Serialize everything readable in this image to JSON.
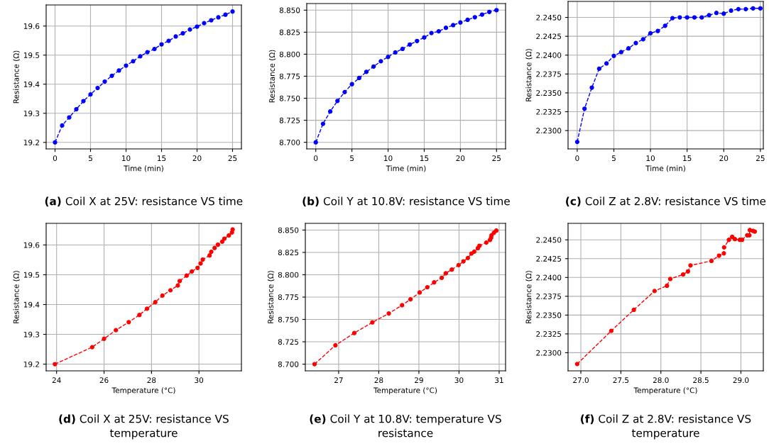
{
  "chart_data": [
    {
      "type": "line",
      "title": "(a) Coil X at 25V: resistance VS time",
      "xlabel": "Time (min)",
      "ylabel": "Resistance (Ω)",
      "grid": true,
      "marker": "circle",
      "line_style": "dashed",
      "x": [
        0,
        1,
        2,
        3,
        4,
        5,
        6,
        7,
        8,
        9,
        10,
        11,
        12,
        13,
        14,
        15,
        16,
        17,
        18,
        19,
        20,
        21,
        22,
        23,
        24,
        25
      ],
      "series": [
        {
          "color": "#0000ff",
          "values": [
            19.2,
            19.258,
            19.286,
            19.314,
            19.342,
            19.365,
            19.387,
            19.409,
            19.429,
            19.447,
            19.464,
            19.479,
            19.496,
            19.51,
            19.521,
            19.537,
            19.549,
            19.564,
            19.575,
            19.588,
            19.598,
            19.61,
            19.62,
            19.63,
            19.639,
            19.65
          ]
        }
      ],
      "xlim": [
        -1.25,
        26.25
      ],
      "ylim": [
        19.1775,
        19.6725
      ],
      "xticks": [
        0,
        5,
        10,
        15,
        20,
        25
      ],
      "yticks": [
        19.2,
        19.3,
        19.4,
        19.5,
        19.6
      ]
    },
    {
      "type": "line",
      "title": "(b) Coil Y at 10.8V: resistance VS time",
      "xlabel": "Time (min)",
      "ylabel": "Resistance (Ω)",
      "grid": true,
      "marker": "circle",
      "line_style": "dashed",
      "x": [
        0,
        1,
        2,
        3,
        4,
        5,
        6,
        7,
        8,
        9,
        10,
        11,
        12,
        13,
        14,
        15,
        16,
        17,
        18,
        19,
        20,
        21,
        22,
        23,
        24,
        25
      ],
      "series": [
        {
          "color": "#0000ff",
          "values": [
            8.7,
            8.721,
            8.735,
            8.747,
            8.757,
            8.766,
            8.773,
            8.78,
            8.786,
            8.792,
            8.797,
            8.802,
            8.806,
            8.811,
            8.815,
            8.819,
            8.824,
            8.826,
            8.83,
            8.833,
            8.836,
            8.839,
            8.842,
            8.845,
            8.848,
            8.85
          ]
        }
      ],
      "xlim": [
        -1.25,
        26.25
      ],
      "ylim": [
        8.6925,
        8.8575
      ],
      "xticks": [
        0,
        5,
        10,
        15,
        20,
        25
      ],
      "yticks": [
        {
          "value": 8.7,
          "label": "8.700"
        },
        {
          "value": 8.725,
          "label": "8.725"
        },
        {
          "value": 8.75,
          "label": "8.750"
        },
        {
          "value": 8.775,
          "label": "8.775"
        },
        {
          "value": 8.8,
          "label": "8.800"
        },
        {
          "value": 8.825,
          "label": "8.825"
        },
        {
          "value": 8.85,
          "label": "8.850"
        }
      ]
    },
    {
      "type": "line",
      "title": "(c) Coil Z at 2.8V: resistance VS time",
      "xlabel": "Time (min)",
      "ylabel": "Resistance (Ω)",
      "grid": true,
      "marker": "circle",
      "line_style": "dashed",
      "x": [
        0,
        1,
        2,
        3,
        4,
        5,
        6,
        7,
        8,
        9,
        10,
        11,
        12,
        13,
        14,
        15,
        16,
        17,
        18,
        19,
        20,
        21,
        22,
        23,
        24,
        25
      ],
      "series": [
        {
          "color": "#0000ff",
          "values": [
            2.2285,
            2.2329,
            2.2357,
            2.2382,
            2.2389,
            2.2399,
            2.2404,
            2.2409,
            2.2416,
            2.2421,
            2.2429,
            2.2432,
            2.2439,
            2.2449,
            2.245,
            2.245,
            2.245,
            2.245,
            2.2453,
            2.2456,
            2.2455,
            2.2459,
            2.2461,
            2.2461,
            2.2462,
            2.2462
          ]
        }
      ],
      "xlim": [
        -1.25,
        25.4
      ],
      "ylim": [
        2.22757,
        2.24712
      ],
      "xticks": [
        0,
        5,
        10,
        15,
        20,
        25
      ],
      "yticks": [
        {
          "value": 2.23,
          "label": "2.2300"
        },
        {
          "value": 2.2325,
          "label": "2.2325"
        },
        {
          "value": 2.235,
          "label": "2.2350"
        },
        {
          "value": 2.2375,
          "label": "2.2375"
        },
        {
          "value": 2.24,
          "label": "2.2400"
        },
        {
          "value": 2.2425,
          "label": "2.2425"
        },
        {
          "value": 2.245,
          "label": "2.2450"
        }
      ]
    },
    {
      "type": "line",
      "title": "(d) Coil X at 25V: resistance VS temperature",
      "xlabel": "Temperature (°C)",
      "ylabel": "Resistance (Ω)",
      "grid": true,
      "marker": "circle",
      "line_style": "dashed",
      "x": [
        23.93,
        25.5,
        26.0,
        26.5,
        27.04,
        27.49,
        27.81,
        28.16,
        28.46,
        28.8,
        29.11,
        29.19,
        29.48,
        29.7,
        29.94,
        30.07,
        30.16,
        30.45,
        30.52,
        30.66,
        30.8,
        30.98,
        31.07,
        31.26,
        31.39,
        31.42
      ],
      "series": [
        {
          "color": "#ff0000",
          "values": [
            19.2,
            19.257,
            19.285,
            19.314,
            19.341,
            19.365,
            19.386,
            19.408,
            19.43,
            19.448,
            19.464,
            19.479,
            19.497,
            19.511,
            19.523,
            19.538,
            19.551,
            19.565,
            19.577,
            19.59,
            19.601,
            19.611,
            19.621,
            19.632,
            19.642,
            19.652
          ]
        }
      ],
      "xlim": [
        23.56,
        31.79
      ],
      "ylim": [
        19.1775,
        19.6725
      ],
      "xticks": [
        24,
        26,
        28,
        30
      ],
      "yticks": [
        19.2,
        19.3,
        19.4,
        19.5,
        19.6
      ]
    },
    {
      "type": "line",
      "title": "(e) Coil Y at 10.8V: temperature VS resistance",
      "xlabel": "Temperature (°C)",
      "ylabel": "Resistance (Ω)",
      "grid": true,
      "marker": "circle",
      "line_style": "dashed",
      "x": [
        26.4,
        26.92,
        27.39,
        27.84,
        28.25,
        28.58,
        28.79,
        29.02,
        29.21,
        29.38,
        29.57,
        29.67,
        29.82,
        29.99,
        30.11,
        30.22,
        30.31,
        30.38,
        30.47,
        30.51,
        30.68,
        30.77,
        30.8,
        30.81,
        30.87,
        30.93
      ],
      "series": [
        {
          "color": "#ff0000",
          "values": [
            8.7,
            8.7211,
            8.7348,
            8.7467,
            8.7567,
            8.7659,
            8.7725,
            8.7802,
            8.786,
            8.7915,
            8.7966,
            8.8016,
            8.8058,
            8.8108,
            8.815,
            8.8187,
            8.8237,
            8.8259,
            8.8298,
            8.8325,
            8.836,
            8.8389,
            8.8415,
            8.8441,
            8.847,
            8.8494
          ]
        }
      ],
      "xlim": [
        26.17,
        31.16
      ],
      "ylim": [
        8.6925,
        8.8575
      ],
      "xticks": [
        27,
        28,
        29,
        30,
        31
      ],
      "yticks": [
        {
          "value": 8.7,
          "label": "8.700"
        },
        {
          "value": 8.725,
          "label": "8.725"
        },
        {
          "value": 8.75,
          "label": "8.750"
        },
        {
          "value": 8.775,
          "label": "8.775"
        },
        {
          "value": 8.8,
          "label": "8.800"
        },
        {
          "value": 8.825,
          "label": "8.825"
        },
        {
          "value": 8.85,
          "label": "8.850"
        }
      ]
    },
    {
      "type": "line",
      "title": "(f) Coil Z at 2.8V: resistance VS temperature",
      "xlabel": "Temperature (°C)",
      "ylabel": "Resistance (Ω)",
      "grid": true,
      "marker": "circle",
      "line_style": "dashed",
      "x": [
        26.954,
        27.38,
        27.662,
        27.921,
        28.076,
        28.117,
        28.278,
        28.338,
        28.37,
        28.632,
        28.727,
        28.787,
        28.79,
        28.85,
        28.891,
        28.925,
        28.986,
        29.014,
        29.078,
        29.106,
        29.112,
        29.15,
        29.173
      ],
      "series": [
        {
          "color": "#ff0000",
          "values": [
            2.2285,
            2.2329,
            2.2357,
            2.2382,
            2.2389,
            2.2398,
            2.2404,
            2.2408,
            2.2416,
            2.2422,
            2.2429,
            2.2432,
            2.244,
            2.245,
            2.2454,
            2.2451,
            2.245,
            2.245,
            2.2456,
            2.2456,
            2.2463,
            2.2462,
            2.2461
          ]
        }
      ],
      "xlim": [
        26.84,
        29.28
      ],
      "ylim": [
        2.22759,
        2.24719
      ],
      "xticks": [
        {
          "value": 27.0,
          "label": "27.0"
        },
        {
          "value": 27.5,
          "label": "27.5"
        },
        {
          "value": 28.0,
          "label": "28.0"
        },
        {
          "value": 28.5,
          "label": "28.5"
        },
        {
          "value": 29.0,
          "label": "29.0"
        }
      ],
      "yticks": [
        {
          "value": 2.23,
          "label": "2.2300"
        },
        {
          "value": 2.2325,
          "label": "2.2325"
        },
        {
          "value": 2.235,
          "label": "2.2350"
        },
        {
          "value": 2.2375,
          "label": "2.2375"
        },
        {
          "value": 2.24,
          "label": "2.2400"
        },
        {
          "value": 2.2425,
          "label": "2.2425"
        },
        {
          "value": 2.245,
          "label": "2.2450"
        }
      ]
    }
  ]
}
